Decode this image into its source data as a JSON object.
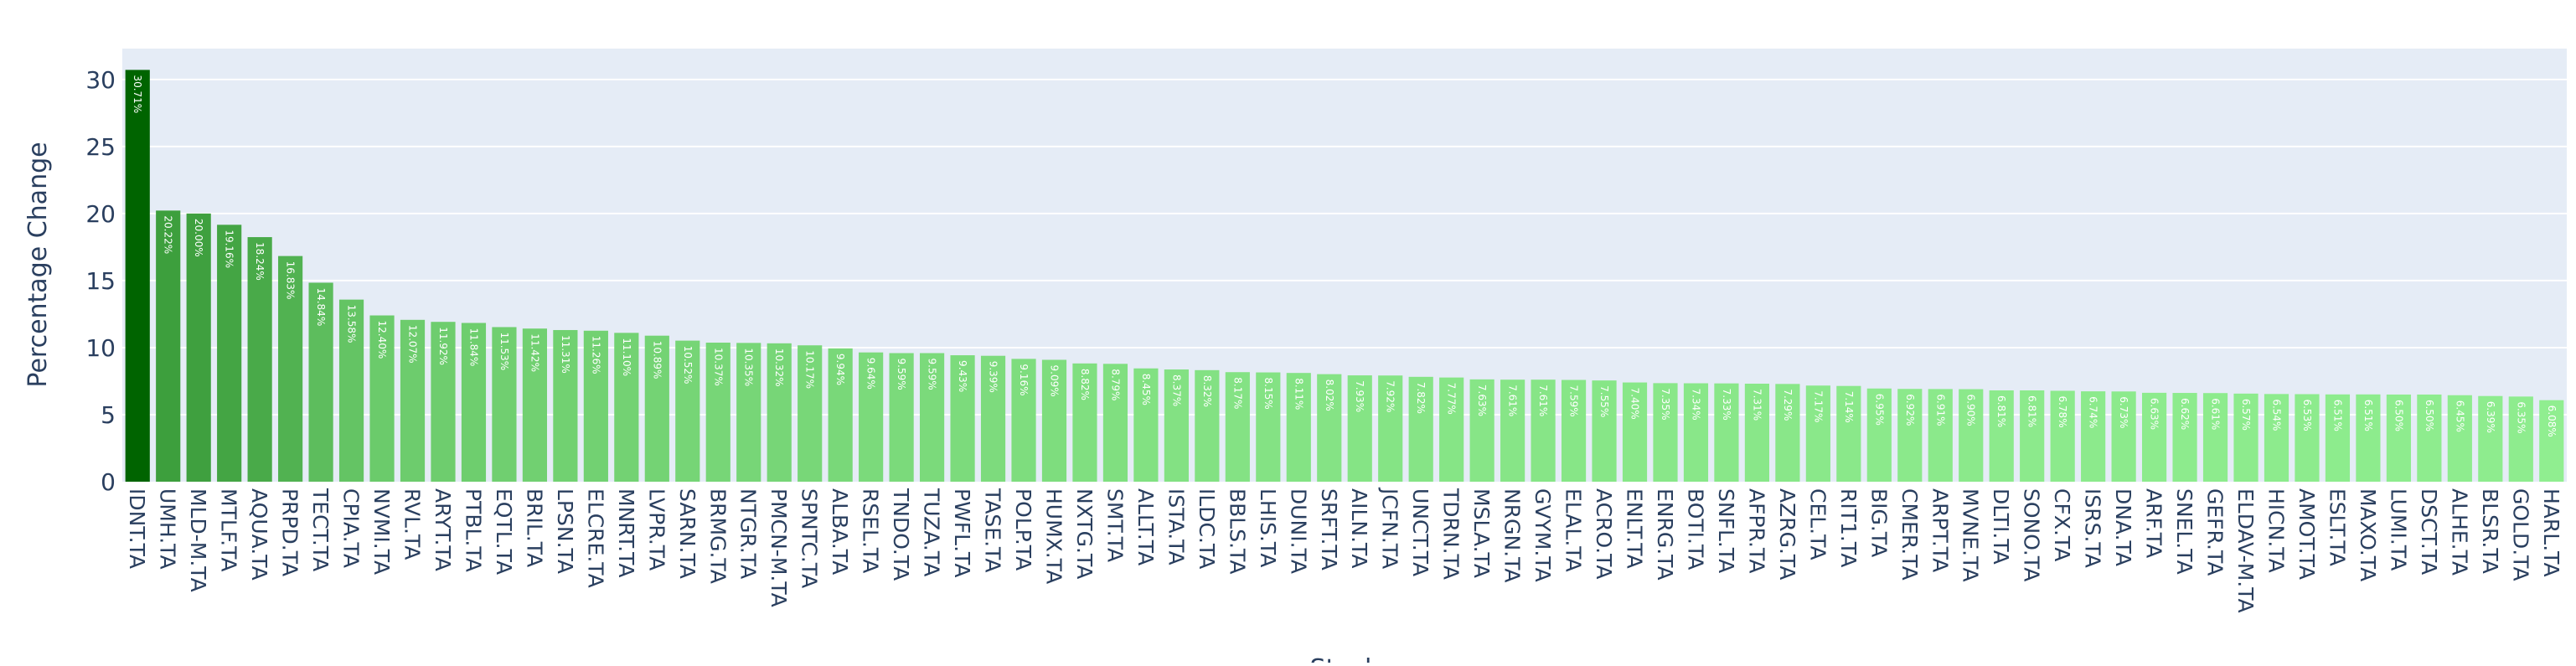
{
  "chart_data": {
    "type": "bar",
    "title": "",
    "xlabel": "Stock",
    "ylabel": "Percentage Change",
    "ylim": [
      0,
      32.3
    ],
    "yticks": [
      0,
      5,
      10,
      15,
      20,
      25,
      30
    ],
    "grid": true,
    "legend": "none",
    "colors": {
      "plot_bg": "#e5ecf6",
      "grid": "#ffffff",
      "axis_text": "#2a3f5f",
      "bar_dark": "#006400",
      "bar_light": "#90ee90",
      "label_text": "#ffffff"
    },
    "categories": [
      "IDNT.TA",
      "UMH.TA",
      "MLD-M.TA",
      "MTLF.TA",
      "AQUA.TA",
      "PRPD.TA",
      "TECT.TA",
      "CPIA.TA",
      "NVMI.TA",
      "RVL.TA",
      "ARYT.TA",
      "PTBL.TA",
      "EQTL.TA",
      "BRIL.TA",
      "LPSN.TA",
      "ELCRE.TA",
      "MNRT.TA",
      "LVPR.TA",
      "SARN.TA",
      "BRMG.TA",
      "NTGR.TA",
      "PMCN-M.TA",
      "SPNTC.TA",
      "ALBA.TA",
      "RSEL.TA",
      "TNDO.TA",
      "TUZA.TA",
      "PWFL.TA",
      "TASE.TA",
      "POLP.TA",
      "HUMX.TA",
      "NXTG.TA",
      "SMT.TA",
      "ALLT.TA",
      "ISTA.TA",
      "ILDC.TA",
      "BBLS.TA",
      "LHIS.TA",
      "DUNI.TA",
      "SRFT.TA",
      "AILN.TA",
      "JCFN.TA",
      "UNCT.TA",
      "TDRN.TA",
      "MSLA.TA",
      "NRGN.TA",
      "GVYM.TA",
      "ELAL.TA",
      "ACRO.TA",
      "ENLT.TA",
      "ENRG.TA",
      "BOTI.TA",
      "SNFL.TA",
      "AFPR.TA",
      "AZRG.TA",
      "CEL.TA",
      "RIT1.TA",
      "BIG.TA",
      "CMER.TA",
      "ARPT.TA",
      "MVNE.TA",
      "DLTI.TA",
      "SONO.TA",
      "CFX.TA",
      "ISRS.TA",
      "DNA.TA",
      "ARF.TA",
      "SNEL.TA",
      "GEFR.TA",
      "ELDAV-M.TA",
      "HICN.TA",
      "AMOT.TA",
      "ESLT.TA",
      "MAXO.TA",
      "LUMI.TA",
      "DSCT.TA",
      "ALHE.TA",
      "BLSR.TA",
      "GOLD.TA",
      "HARL.TA"
    ],
    "values": [
      30.71,
      20.22,
      20.0,
      19.16,
      18.24,
      16.83,
      14.84,
      13.58,
      12.4,
      12.07,
      11.92,
      11.84,
      11.53,
      11.42,
      11.31,
      11.26,
      11.1,
      10.89,
      10.52,
      10.37,
      10.35,
      10.32,
      10.17,
      9.94,
      9.64,
      9.59,
      9.59,
      9.43,
      9.39,
      9.16,
      9.09,
      8.82,
      8.79,
      8.45,
      8.37,
      8.32,
      8.17,
      8.15,
      8.11,
      8.02,
      7.93,
      7.92,
      7.82,
      7.77,
      7.63,
      7.61,
      7.61,
      7.59,
      7.55,
      7.4,
      7.35,
      7.34,
      7.33,
      7.31,
      7.29,
      7.17,
      7.14,
      6.95,
      6.92,
      6.91,
      6.9,
      6.81,
      6.81,
      6.78,
      6.74,
      6.73,
      6.63,
      6.62,
      6.61,
      6.57,
      6.54,
      6.53,
      6.51,
      6.51,
      6.5,
      6.5,
      6.45,
      6.39,
      6.35,
      6.08
    ],
    "data_labels": [
      "30.71%",
      "20.22%",
      "20.00%",
      "19.16%",
      "18.24%",
      "16.83%",
      "14.84%",
      "13.58%",
      "12.40%",
      "12.07%",
      "11.92%",
      "11.84%",
      "11.53%",
      "11.42%",
      "11.31%",
      "11.26%",
      "11.10%",
      "10.89%",
      "10.52%",
      "10.37%",
      "10.35%",
      "10.32%",
      "10.17%",
      "9.94%",
      "9.64%",
      "9.59%",
      "9.59%",
      "9.43%",
      "9.39%",
      "9.16%",
      "9.09%",
      "8.82%",
      "8.79%",
      "8.45%",
      "8.37%",
      "8.32%",
      "8.17%",
      "8.15%",
      "8.11%",
      "8.02%",
      "7.93%",
      "7.92%",
      "7.82%",
      "7.77%",
      "7.63%",
      "7.61%",
      "7.61%",
      "7.59%",
      "7.55%",
      "7.40%",
      "7.35%",
      "7.34%",
      "7.33%",
      "7.31%",
      "7.29%",
      "7.17%",
      "7.14%",
      "6.95%",
      "6.92%",
      "6.91%",
      "6.90%",
      "6.81%",
      "6.81%",
      "6.78%",
      "6.74%",
      "6.73%",
      "6.63%",
      "6.62%",
      "6.61%",
      "6.57%",
      "6.54%",
      "6.53%",
      "6.51%",
      "6.51%",
      "6.50%",
      "6.50%",
      "6.45%",
      "6.39%",
      "6.35%",
      "6.08%"
    ]
  }
}
